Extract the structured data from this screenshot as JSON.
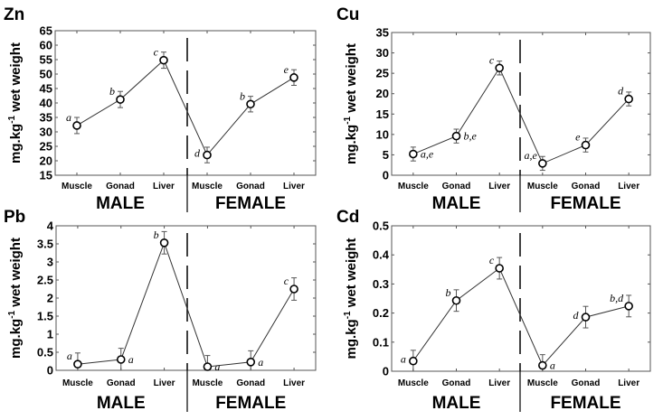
{
  "figure": {
    "ylabel": "mg.kg-1 wet weight",
    "ylabel_main": "mg.kg",
    "ylabel_sup": "-1",
    "ylabel_tail": " wet weight",
    "groups": [
      "MALE",
      "FEMALE"
    ]
  },
  "chart_data": [
    {
      "type": "line",
      "title": "Zn",
      "ylabel": "mg.kg-1 wet weight",
      "categories": [
        "Muscle",
        "Gonad",
        "Liver",
        "Muscle",
        "Gonad",
        "Liver"
      ],
      "groups": [
        "MALE",
        "FEMALE"
      ],
      "ylim": [
        15,
        65
      ],
      "yticks": [
        15,
        20,
        25,
        30,
        35,
        40,
        45,
        50,
        55,
        60,
        65
      ],
      "ytick_labels": [
        "15",
        "20",
        "25",
        "30",
        "35",
        "40",
        "45",
        "50",
        "55",
        "60",
        "65"
      ],
      "values": [
        32.2,
        41.2,
        54.8,
        22.0,
        39.6,
        48.8
      ],
      "err": [
        2.8,
        2.8,
        2.8,
        2.7,
        2.7,
        2.7
      ],
      "annotations": [
        "a",
        "b",
        "c",
        "d",
        "b",
        "e"
      ],
      "ann_side": [
        "tl",
        "tl",
        "tl",
        "l",
        "tl",
        "tl"
      ]
    },
    {
      "type": "line",
      "title": "Cu",
      "ylabel": "mg.kg-1 wet weight",
      "categories": [
        "Muscle",
        "Gonad",
        "Liver",
        "Muscle",
        "Gonad",
        "Liver"
      ],
      "groups": [
        "MALE",
        "FEMALE"
      ],
      "ylim": [
        0,
        35
      ],
      "yticks": [
        0,
        5,
        10,
        15,
        20,
        25,
        30,
        35
      ],
      "ytick_labels": [
        "0",
        "5",
        "10",
        "15",
        "20",
        "25",
        "30",
        "35"
      ],
      "values": [
        5.2,
        9.6,
        26.3,
        2.9,
        7.4,
        18.7
      ],
      "err": [
        1.7,
        1.7,
        1.7,
        1.7,
        1.7,
        1.7
      ],
      "annotations": [
        "a,e",
        "b,e",
        "c",
        "a,e",
        "e",
        "d"
      ],
      "ann_side": [
        "r",
        "r",
        "tl",
        "tl",
        "tl",
        "tl"
      ]
    },
    {
      "type": "line",
      "title": "Pb",
      "ylabel": "mg.kg-1 wet weight",
      "categories": [
        "Muscle",
        "Gonad",
        "Liver",
        "Muscle",
        "Gonad",
        "Liver"
      ],
      "groups": [
        "MALE",
        "FEMALE"
      ],
      "ylim": [
        0,
        4
      ],
      "yticks": [
        0,
        0.5,
        1,
        1.5,
        2,
        2.5,
        3,
        3.5,
        4
      ],
      "ytick_labels": [
        "0",
        "0.5",
        "1",
        "1.5",
        "2",
        "2.5",
        "3",
        "3.5",
        "4"
      ],
      "values": [
        0.17,
        0.3,
        3.53,
        0.1,
        0.23,
        2.25
      ],
      "err": [
        0.31,
        0.31,
        0.31,
        0.31,
        0.31,
        0.31
      ],
      "annotations": [
        "a",
        "a",
        "b",
        "a",
        "a",
        "c"
      ],
      "ann_side": [
        "tl",
        "r",
        "tl",
        "r",
        "r",
        "tl"
      ]
    },
    {
      "type": "line",
      "title": "Cd",
      "ylabel": "mg.kg-1 wet weight",
      "categories": [
        "Muscle",
        "Gonad",
        "Liver",
        "Muscle",
        "Gonad",
        "Liver"
      ],
      "groups": [
        "MALE",
        "FEMALE"
      ],
      "ylim": [
        0,
        0.5
      ],
      "yticks": [
        0,
        0.1,
        0.2,
        0.3,
        0.4,
        0.5
      ],
      "ytick_labels": [
        "0",
        "0.1",
        "0.2",
        "0.3",
        "0.4",
        "0.5"
      ],
      "values": [
        0.035,
        0.243,
        0.354,
        0.02,
        0.186,
        0.224
      ],
      "err": [
        0.037,
        0.037,
        0.037,
        0.037,
        0.037,
        0.037
      ],
      "annotations": [
        "a",
        "b",
        "c",
        "a",
        "d",
        "b,d"
      ],
      "ann_side": [
        "l",
        "tl",
        "tl",
        "r",
        "l",
        "tl"
      ]
    }
  ]
}
